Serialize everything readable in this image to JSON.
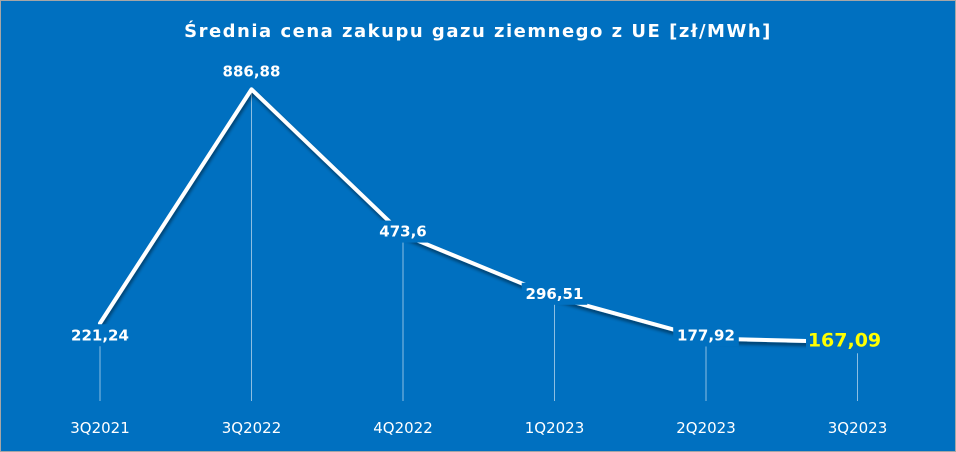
{
  "chart_data": {
    "type": "line",
    "title": "Średnia cena zakupu gazu ziemnego z UE [zł/MWh]",
    "categories": [
      "3Q2021",
      "3Q2022",
      "4Q2022",
      "1Q2023",
      "2Q2023",
      "3Q2023"
    ],
    "values": [
      221.24,
      886.88,
      473.6,
      296.51,
      177.92,
      167.09
    ],
    "data_labels": [
      "221,24",
      "886,88",
      "473,6",
      "296,51",
      "177,92",
      "167,09"
    ],
    "highlight_index": 5,
    "xlabel": "",
    "ylabel": "",
    "ylim": [
      0,
      1000
    ],
    "grid": false,
    "legend": "none",
    "colors": {
      "background": "#0070c0",
      "line": "#ffffff",
      "label": "#ffffff",
      "highlight_label": "#ffff00",
      "drop_line": "#ffffff"
    }
  }
}
